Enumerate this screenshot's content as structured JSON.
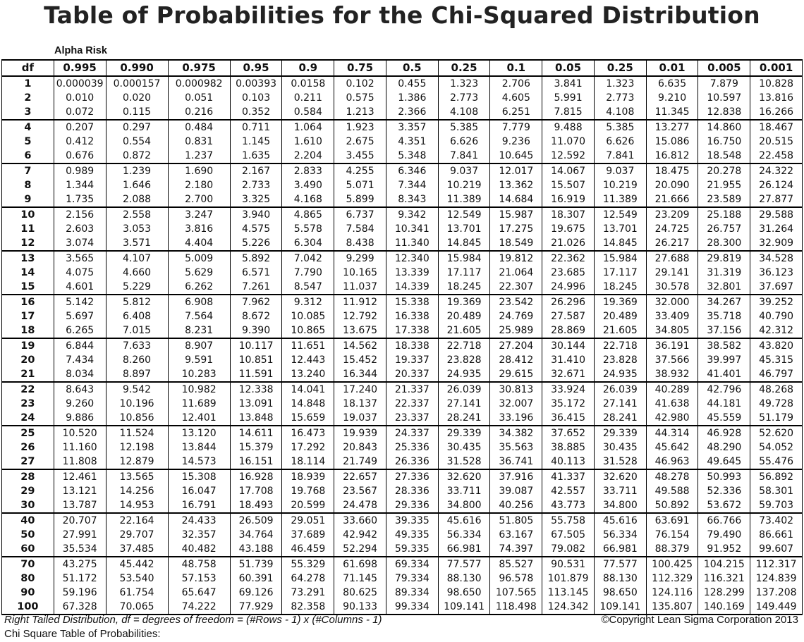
{
  "title": "Table of Probabilities for the Chi-Squared Distribution",
  "alpha_label": "Alpha Risk",
  "table": {
    "headers": [
      "df",
      "0.995",
      "0.990",
      "0.975",
      "0.95",
      "0.9",
      "0.75",
      "0.5",
      "0.25",
      "0.1",
      "0.05",
      "0.25",
      "0.01",
      "0.005",
      "0.001"
    ],
    "rows": [
      [
        "1",
        "0.000039",
        "0.000157",
        "0.000982",
        "0.00393",
        "0.0158",
        "0.102",
        "0.455",
        "1.323",
        "2.706",
        "3.841",
        "1.323",
        "6.635",
        "7.879",
        "10.828"
      ],
      [
        "2",
        "0.010",
        "0.020",
        "0.051",
        "0.103",
        "0.211",
        "0.575",
        "1.386",
        "2.773",
        "4.605",
        "5.991",
        "2.773",
        "9.210",
        "10.597",
        "13.816"
      ],
      [
        "3",
        "0.072",
        "0.115",
        "0.216",
        "0.352",
        "0.584",
        "1.213",
        "2.366",
        "4.108",
        "6.251",
        "7.815",
        "4.108",
        "11.345",
        "12.838",
        "16.266"
      ],
      [
        "4",
        "0.207",
        "0.297",
        "0.484",
        "0.711",
        "1.064",
        "1.923",
        "3.357",
        "5.385",
        "7.779",
        "9.488",
        "5.385",
        "13.277",
        "14.860",
        "18.467"
      ],
      [
        "5",
        "0.412",
        "0.554",
        "0.831",
        "1.145",
        "1.610",
        "2.675",
        "4.351",
        "6.626",
        "9.236",
        "11.070",
        "6.626",
        "15.086",
        "16.750",
        "20.515"
      ],
      [
        "6",
        "0.676",
        "0.872",
        "1.237",
        "1.635",
        "2.204",
        "3.455",
        "5.348",
        "7.841",
        "10.645",
        "12.592",
        "7.841",
        "16.812",
        "18.548",
        "22.458"
      ],
      [
        "7",
        "0.989",
        "1.239",
        "1.690",
        "2.167",
        "2.833",
        "4.255",
        "6.346",
        "9.037",
        "12.017",
        "14.067",
        "9.037",
        "18.475",
        "20.278",
        "24.322"
      ],
      [
        "8",
        "1.344",
        "1.646",
        "2.180",
        "2.733",
        "3.490",
        "5.071",
        "7.344",
        "10.219",
        "13.362",
        "15.507",
        "10.219",
        "20.090",
        "21.955",
        "26.124"
      ],
      [
        "9",
        "1.735",
        "2.088",
        "2.700",
        "3.325",
        "4.168",
        "5.899",
        "8.343",
        "11.389",
        "14.684",
        "16.919",
        "11.389",
        "21.666",
        "23.589",
        "27.877"
      ],
      [
        "10",
        "2.156",
        "2.558",
        "3.247",
        "3.940",
        "4.865",
        "6.737",
        "9.342",
        "12.549",
        "15.987",
        "18.307",
        "12.549",
        "23.209",
        "25.188",
        "29.588"
      ],
      [
        "11",
        "2.603",
        "3.053",
        "3.816",
        "4.575",
        "5.578",
        "7.584",
        "10.341",
        "13.701",
        "17.275",
        "19.675",
        "13.701",
        "24.725",
        "26.757",
        "31.264"
      ],
      [
        "12",
        "3.074",
        "3.571",
        "4.404",
        "5.226",
        "6.304",
        "8.438",
        "11.340",
        "14.845",
        "18.549",
        "21.026",
        "14.845",
        "26.217",
        "28.300",
        "32.909"
      ],
      [
        "13",
        "3.565",
        "4.107",
        "5.009",
        "5.892",
        "7.042",
        "9.299",
        "12.340",
        "15.984",
        "19.812",
        "22.362",
        "15.984",
        "27.688",
        "29.819",
        "34.528"
      ],
      [
        "14",
        "4.075",
        "4.660",
        "5.629",
        "6.571",
        "7.790",
        "10.165",
        "13.339",
        "17.117",
        "21.064",
        "23.685",
        "17.117",
        "29.141",
        "31.319",
        "36.123"
      ],
      [
        "15",
        "4.601",
        "5.229",
        "6.262",
        "7.261",
        "8.547",
        "11.037",
        "14.339",
        "18.245",
        "22.307",
        "24.996",
        "18.245",
        "30.578",
        "32.801",
        "37.697"
      ],
      [
        "16",
        "5.142",
        "5.812",
        "6.908",
        "7.962",
        "9.312",
        "11.912",
        "15.338",
        "19.369",
        "23.542",
        "26.296",
        "19.369",
        "32.000",
        "34.267",
        "39.252"
      ],
      [
        "17",
        "5.697",
        "6.408",
        "7.564",
        "8.672",
        "10.085",
        "12.792",
        "16.338",
        "20.489",
        "24.769",
        "27.587",
        "20.489",
        "33.409",
        "35.718",
        "40.790"
      ],
      [
        "18",
        "6.265",
        "7.015",
        "8.231",
        "9.390",
        "10.865",
        "13.675",
        "17.338",
        "21.605",
        "25.989",
        "28.869",
        "21.605",
        "34.805",
        "37.156",
        "42.312"
      ],
      [
        "19",
        "6.844",
        "7.633",
        "8.907",
        "10.117",
        "11.651",
        "14.562",
        "18.338",
        "22.718",
        "27.204",
        "30.144",
        "22.718",
        "36.191",
        "38.582",
        "43.820"
      ],
      [
        "20",
        "7.434",
        "8.260",
        "9.591",
        "10.851",
        "12.443",
        "15.452",
        "19.337",
        "23.828",
        "28.412",
        "31.410",
        "23.828",
        "37.566",
        "39.997",
        "45.315"
      ],
      [
        "21",
        "8.034",
        "8.897",
        "10.283",
        "11.591",
        "13.240",
        "16.344",
        "20.337",
        "24.935",
        "29.615",
        "32.671",
        "24.935",
        "38.932",
        "41.401",
        "46.797"
      ],
      [
        "22",
        "8.643",
        "9.542",
        "10.982",
        "12.338",
        "14.041",
        "17.240",
        "21.337",
        "26.039",
        "30.813",
        "33.924",
        "26.039",
        "40.289",
        "42.796",
        "48.268"
      ],
      [
        "23",
        "9.260",
        "10.196",
        "11.689",
        "13.091",
        "14.848",
        "18.137",
        "22.337",
        "27.141",
        "32.007",
        "35.172",
        "27.141",
        "41.638",
        "44.181",
        "49.728"
      ],
      [
        "24",
        "9.886",
        "10.856",
        "12.401",
        "13.848",
        "15.659",
        "19.037",
        "23.337",
        "28.241",
        "33.196",
        "36.415",
        "28.241",
        "42.980",
        "45.559",
        "51.179"
      ],
      [
        "25",
        "10.520",
        "11.524",
        "13.120",
        "14.611",
        "16.473",
        "19.939",
        "24.337",
        "29.339",
        "34.382",
        "37.652",
        "29.339",
        "44.314",
        "46.928",
        "52.620"
      ],
      [
        "26",
        "11.160",
        "12.198",
        "13.844",
        "15.379",
        "17.292",
        "20.843",
        "25.336",
        "30.435",
        "35.563",
        "38.885",
        "30.435",
        "45.642",
        "48.290",
        "54.052"
      ],
      [
        "27",
        "11.808",
        "12.879",
        "14.573",
        "16.151",
        "18.114",
        "21.749",
        "26.336",
        "31.528",
        "36.741",
        "40.113",
        "31.528",
        "46.963",
        "49.645",
        "55.476"
      ],
      [
        "28",
        "12.461",
        "13.565",
        "15.308",
        "16.928",
        "18.939",
        "22.657",
        "27.336",
        "32.620",
        "37.916",
        "41.337",
        "32.620",
        "48.278",
        "50.993",
        "56.892"
      ],
      [
        "29",
        "13.121",
        "14.256",
        "16.047",
        "17.708",
        "19.768",
        "23.567",
        "28.336",
        "33.711",
        "39.087",
        "42.557",
        "33.711",
        "49.588",
        "52.336",
        "58.301"
      ],
      [
        "30",
        "13.787",
        "14.953",
        "16.791",
        "18.493",
        "20.599",
        "24.478",
        "29.336",
        "34.800",
        "40.256",
        "43.773",
        "34.800",
        "50.892",
        "53.672",
        "59.703"
      ],
      [
        "40",
        "20.707",
        "22.164",
        "24.433",
        "26.509",
        "29.051",
        "33.660",
        "39.335",
        "45.616",
        "51.805",
        "55.758",
        "45.616",
        "63.691",
        "66.766",
        "73.402"
      ],
      [
        "50",
        "27.991",
        "29.707",
        "32.357",
        "34.764",
        "37.689",
        "42.942",
        "49.335",
        "56.334",
        "63.167",
        "67.505",
        "56.334",
        "76.154",
        "79.490",
        "86.661"
      ],
      [
        "60",
        "35.534",
        "37.485",
        "40.482",
        "43.188",
        "46.459",
        "52.294",
        "59.335",
        "66.981",
        "74.397",
        "79.082",
        "66.981",
        "88.379",
        "91.952",
        "99.607"
      ],
      [
        "70",
        "43.275",
        "45.442",
        "48.758",
        "51.739",
        "55.329",
        "61.698",
        "69.334",
        "77.577",
        "85.527",
        "90.531",
        "77.577",
        "100.425",
        "104.215",
        "112.317"
      ],
      [
        "80",
        "51.172",
        "53.540",
        "57.153",
        "60.391",
        "64.278",
        "71.145",
        "79.334",
        "88.130",
        "96.578",
        "101.879",
        "88.130",
        "112.329",
        "116.321",
        "124.839"
      ],
      [
        "90",
        "59.196",
        "61.754",
        "65.647",
        "69.126",
        "73.291",
        "80.625",
        "89.334",
        "98.650",
        "107.565",
        "113.145",
        "98.650",
        "124.116",
        "128.299",
        "137.208"
      ],
      [
        "100",
        "67.328",
        "70.065",
        "74.222",
        "77.929",
        "82.358",
        "90.133",
        "99.334",
        "109.141",
        "118.498",
        "124.342",
        "109.141",
        "135.807",
        "140.169",
        "149.449"
      ]
    ]
  },
  "footer": {
    "note": "Right Tailed Distribution, df = degrees of freedom = (#Rows - 1) x (#Columns - 1)",
    "caption": "Chi Square Table of Probabilities:",
    "copyright": "©Copyright Lean Sigma Corporation 2013"
  }
}
